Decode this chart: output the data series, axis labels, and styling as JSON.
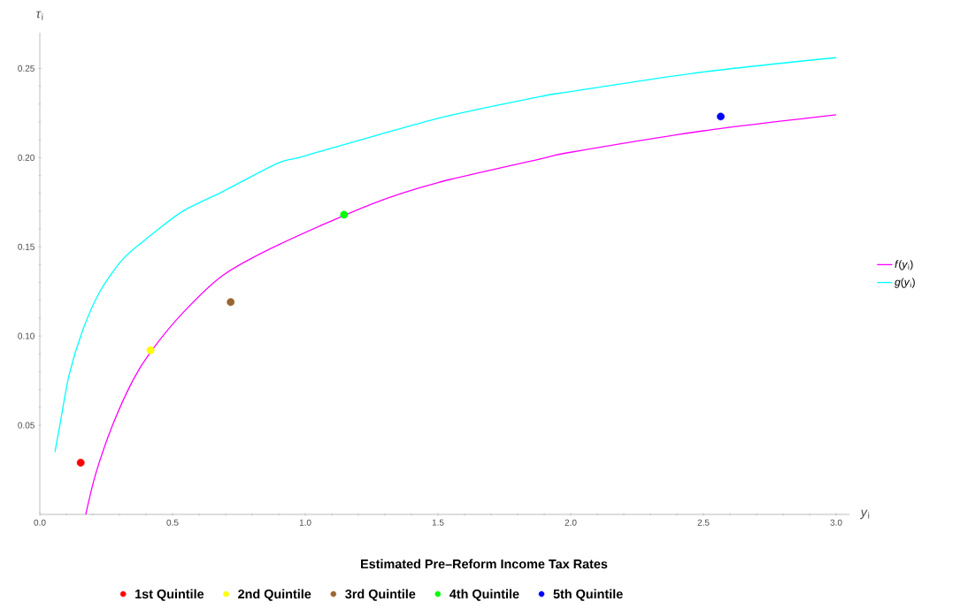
{
  "chart_data": {
    "type": "line",
    "legend_title": "Estimated Pre–Reform Income Tax Rates",
    "xlabel": "*y*$_{i}$",
    "ylabel": "*τ*$_{i}$",
    "xlim": [
      0,
      3.05
    ],
    "ylim": [
      0,
      0.27
    ],
    "xticks": [
      {
        "value": 0,
        "label": "0.0"
      },
      {
        "value": 0.5,
        "label": "0.5"
      },
      {
        "value": 1,
        "label": "1.0"
      },
      {
        "value": 1.5,
        "label": "1.5"
      },
      {
        "value": 2,
        "label": "2.0"
      },
      {
        "value": 2.5,
        "label": "2.5"
      },
      {
        "value": 3,
        "label": "3.0"
      }
    ],
    "yticks": [
      {
        "value": 0.05,
        "label": "0.05"
      },
      {
        "value": 0.1,
        "label": "0.10"
      },
      {
        "value": 0.15,
        "label": "0.15"
      },
      {
        "value": 0.2,
        "label": "0.20"
      },
      {
        "value": 0.25,
        "label": "0.25"
      }
    ],
    "legend": "right",
    "series": [
      {
        "name": "*f*(*y*$_{i}$)",
        "color": "#ff00ff",
        "x": [
          0.173,
          0.211,
          0.274,
          0.35,
          0.417,
          0.539,
          0.69,
          0.898,
          1.25,
          1.5,
          1.878,
          2.0,
          2.5,
          3.0
        ],
        "values": [
          0,
          0.023,
          0.05,
          0.075,
          0.091,
          0.113,
          0.134,
          0.151,
          0.174,
          0.186,
          0.199,
          0.203,
          0.215,
          0.224
        ]
      },
      {
        "name": "*g*(*y*$_{i}$)",
        "color": "#00ffff",
        "x": [
          0.057,
          0.079,
          0.11,
          0.161,
          0.223,
          0.312,
          0.414,
          0.539,
          0.69,
          0.898,
          1.0,
          1.5,
          1.878,
          2.0,
          2.5,
          3.0
        ],
        "values": [
          0.035,
          0.053,
          0.078,
          0.103,
          0.124,
          0.143,
          0.156,
          0.17,
          0.181,
          0.197,
          0.201,
          0.222,
          0.234,
          0.237,
          0.248,
          0.256
        ]
      },
      {
        "name": "1st Quintile",
        "color": "#ff0000",
        "type": "scatter",
        "marker": "circle",
        "x": [
          0.154
        ],
        "values": [
          0.029
        ]
      },
      {
        "name": "2nd Quintile",
        "color": "#ffff00",
        "type": "scatter",
        "marker": "circle",
        "x": [
          0.417
        ],
        "values": [
          0.092
        ]
      },
      {
        "name": "3rd Quintile",
        "color": "#996633",
        "type": "scatter",
        "marker": "circle",
        "x": [
          0.719
        ],
        "values": [
          0.119
        ]
      },
      {
        "name": "4th Quintile",
        "color": "#00ff00",
        "type": "scatter",
        "marker": "circle",
        "x": [
          1.146
        ],
        "values": [
          0.168
        ]
      },
      {
        "name": "5th Quintile",
        "color": "#0000ff",
        "type": "scatter",
        "marker": "circle",
        "x": [
          2.565
        ],
        "values": [
          0.223
        ]
      }
    ]
  }
}
